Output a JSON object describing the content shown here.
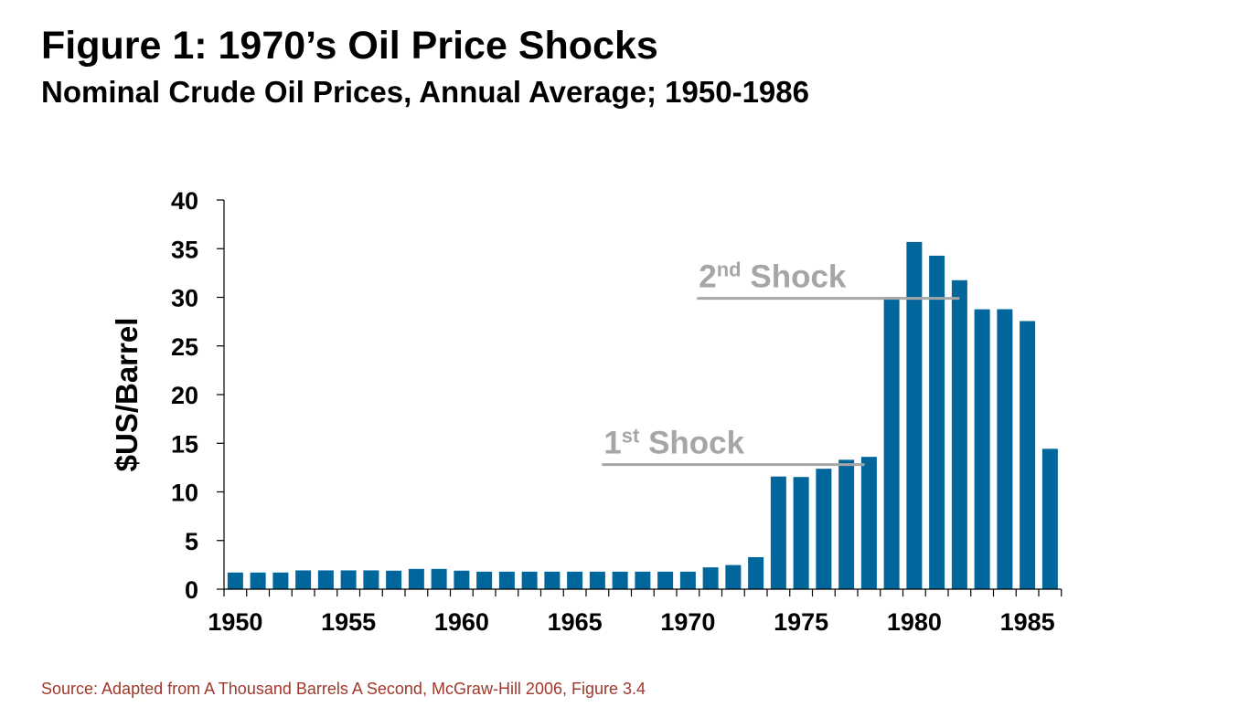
{
  "header": {
    "title": "Figure 1: 1970’s Oil Price Shocks",
    "subtitle": "Nominal Crude Oil Prices, Annual Average; 1950-1986"
  },
  "footer": {
    "source": "Source: Adapted from A Thousand Barrels A Second, McGraw-Hill 2006, Figure 3.4"
  },
  "colors": {
    "bar": "#00669c",
    "annotation": "#a6a6a6",
    "source_text": "#a0382b"
  },
  "chart_data": {
    "type": "bar",
    "title": "Figure 1: 1970’s Oil Price Shocks",
    "subtitle": "Nominal Crude Oil Prices, Annual Average; 1950-1986",
    "xlabel": "",
    "ylabel": "$US/Barrel",
    "ylim": [
      0,
      40
    ],
    "yticks": [
      0,
      5,
      10,
      15,
      20,
      25,
      30,
      35,
      40
    ],
    "xtick_labels": [
      "1950",
      "1955",
      "1960",
      "1965",
      "1970",
      "1975",
      "1980",
      "1985"
    ],
    "grid": false,
    "categories": [
      1950,
      1951,
      1952,
      1953,
      1954,
      1955,
      1956,
      1957,
      1958,
      1959,
      1960,
      1961,
      1962,
      1963,
      1964,
      1965,
      1966,
      1967,
      1968,
      1969,
      1970,
      1971,
      1972,
      1973,
      1974,
      1975,
      1976,
      1977,
      1978,
      1979,
      1980,
      1981,
      1982,
      1983,
      1984,
      1985,
      1986
    ],
    "values": [
      1.71,
      1.71,
      1.71,
      1.93,
      1.93,
      1.93,
      1.93,
      1.9,
      2.08,
      2.08,
      1.9,
      1.8,
      1.8,
      1.8,
      1.8,
      1.8,
      1.8,
      1.8,
      1.8,
      1.8,
      1.8,
      2.24,
      2.48,
      3.29,
      11.58,
      11.53,
      12.38,
      13.3,
      13.6,
      30.03,
      35.69,
      34.28,
      31.76,
      28.77,
      28.78,
      27.56,
      14.43
    ],
    "annotations": [
      {
        "label": "1",
        "sup": "st",
        "text": " Shock",
        "x_start": 1966.7,
        "x_end": 1978.3,
        "y": 12.8
      },
      {
        "label": "2",
        "sup": "nd",
        "text": " Shock",
        "x_start": 1970.9,
        "x_end": 1982.5,
        "y": 29.9
      }
    ]
  }
}
